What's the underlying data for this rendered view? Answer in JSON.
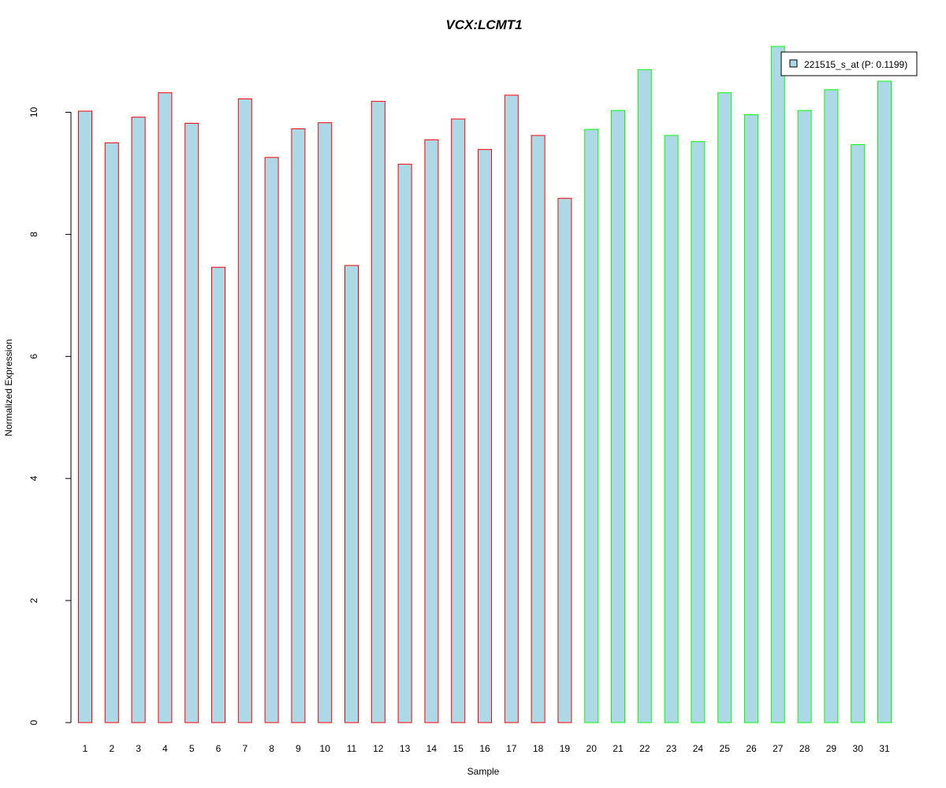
{
  "chart_data": {
    "type": "bar",
    "title": "VCX:LCMT1",
    "xlabel": "Sample",
    "ylabel": "Normalized Expression",
    "ylim": [
      0,
      11.1
    ],
    "yticks": [
      0,
      2,
      4,
      6,
      8,
      10
    ],
    "categories": [
      "1",
      "2",
      "3",
      "4",
      "5",
      "6",
      "7",
      "8",
      "9",
      "10",
      "11",
      "12",
      "13",
      "14",
      "15",
      "16",
      "17",
      "18",
      "19",
      "20",
      "21",
      "22",
      "23",
      "24",
      "25",
      "26",
      "27",
      "28",
      "29",
      "30",
      "31"
    ],
    "values": [
      10.02,
      9.5,
      9.92,
      10.32,
      9.82,
      7.46,
      10.22,
      9.26,
      9.73,
      9.83,
      7.49,
      10.18,
      9.15,
      9.55,
      9.89,
      9.39,
      10.28,
      9.62,
      8.59,
      9.72,
      10.03,
      10.7,
      9.62,
      9.52,
      10.32,
      9.96,
      11.08,
      10.03,
      10.37,
      9.47,
      10.51
    ],
    "groups": [
      1,
      1,
      1,
      1,
      1,
      1,
      1,
      1,
      1,
      1,
      1,
      1,
      1,
      1,
      1,
      1,
      1,
      1,
      1,
      2,
      2,
      2,
      2,
      2,
      2,
      2,
      2,
      2,
      2,
      2,
      2
    ],
    "colors": {
      "title": "#0000cc",
      "bar_fill": "#add8e6",
      "group1_border": "#ff0000",
      "group2_border": "#00ff00"
    },
    "legend": {
      "position": "top-right",
      "label": "221515_s_at (P: 0.1199)"
    },
    "grid": false
  }
}
